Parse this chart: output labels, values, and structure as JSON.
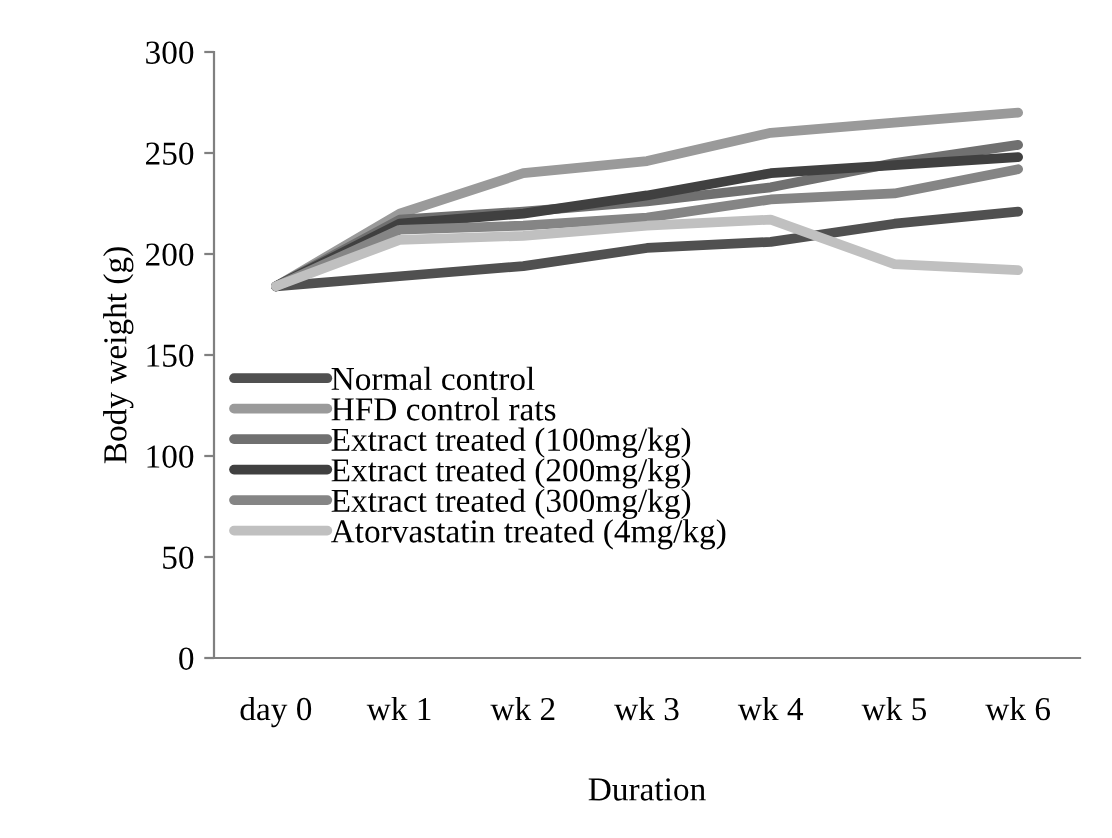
{
  "chart_data": {
    "type": "line",
    "xlabel": "Duration",
    "ylabel": "Body weight (g)",
    "categories": [
      "day 0",
      "wk 1",
      "wk 2",
      "wk 3",
      "wk 4",
      "wk 5",
      "wk 6"
    ],
    "series": [
      {
        "name": "Normal control",
        "color": "#505050",
        "values": [
          184,
          189,
          194,
          203,
          206,
          215,
          221
        ]
      },
      {
        "name": "HFD control rats",
        "color": "#9a9a9a",
        "values": [
          184,
          220,
          240,
          246,
          260,
          265,
          270
        ]
      },
      {
        "name": "Extract treated (100mg/kg)",
        "color": "#707070",
        "values": [
          184,
          217,
          221,
          226,
          233,
          245,
          254
        ]
      },
      {
        "name": "Extract treated (200mg/kg)",
        "color": "#404040",
        "values": [
          184,
          215,
          220,
          229,
          240,
          244,
          248
        ]
      },
      {
        "name": "Extract treated (300mg/kg)",
        "color": "#858585",
        "values": [
          184,
          212,
          214,
          218,
          227,
          230,
          242
        ]
      },
      {
        "name": "Atorvastatin treated (4mg/kg)",
        "color": "#c0c0c0",
        "values": [
          184,
          207,
          209,
          214,
          217,
          195,
          192
        ]
      }
    ],
    "ylim": [
      0,
      300
    ],
    "yticks": [
      0,
      50,
      100,
      150,
      200,
      250,
      300
    ],
    "grid": false,
    "legend": "left",
    "marker": "none",
    "line_style": "solid"
  }
}
